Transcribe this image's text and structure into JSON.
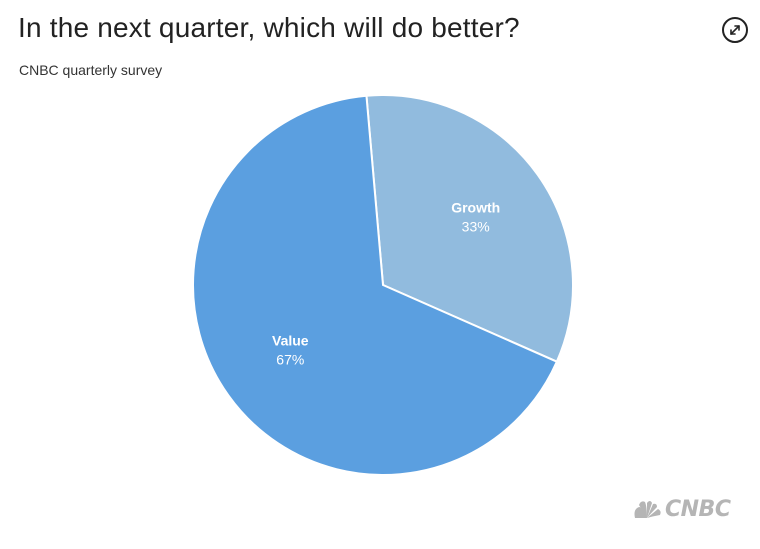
{
  "title": "In the next quarter, which will do better?",
  "subtitle": "CNBC quarterly survey",
  "expand_icon": "expand-arrows-icon",
  "logo": {
    "text": "CNBC",
    "icon": "peacock-icon",
    "color": "#b5b5b5"
  },
  "chart_data": {
    "type": "pie",
    "title": "In the next quarter, which will do better?",
    "subtitle": "CNBC quarterly survey",
    "slices": [
      {
        "name": "Growth",
        "value": 33,
        "label": "33%",
        "color": "#91bbde"
      },
      {
        "name": "Value",
        "value": 67,
        "label": "67%",
        "color": "#5b9fe0"
      }
    ],
    "start_angle_deg": -5,
    "legend": "none",
    "slice_border_color": "#ffffff"
  }
}
